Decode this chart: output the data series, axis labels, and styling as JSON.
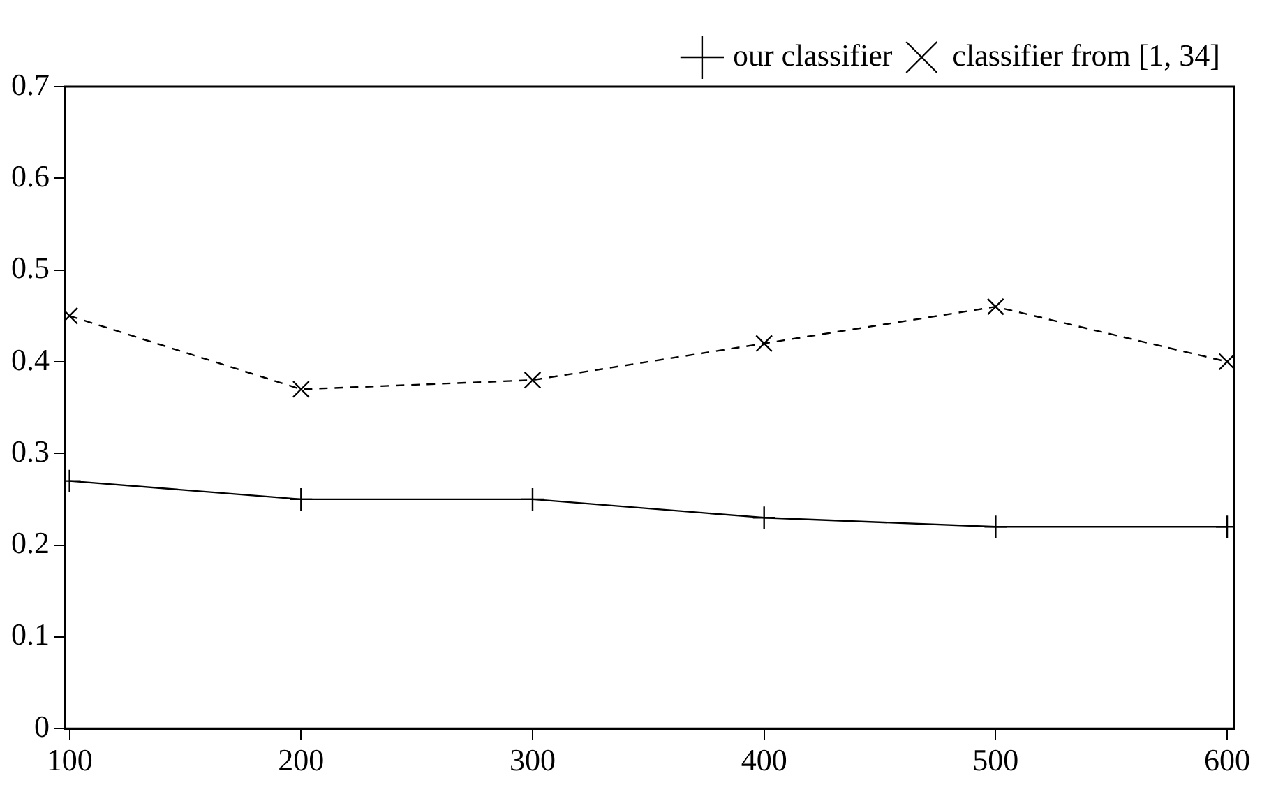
{
  "chart_data": {
    "type": "line",
    "x": [
      100,
      200,
      300,
      400,
      500,
      600
    ],
    "series": [
      {
        "name": "our classifier",
        "color": "#000000",
        "values": [
          0.27,
          0.25,
          0.25,
          0.23,
          0.22,
          0.22
        ],
        "marker": "plus",
        "line_style": "solid"
      },
      {
        "name": "classifier from [1, 34]",
        "color": "#000000",
        "values": [
          0.45,
          0.37,
          0.38,
          0.42,
          0.46,
          0.4
        ],
        "marker": "cross",
        "line_style": "dashed"
      }
    ],
    "xlim": [
      98,
      603
    ],
    "xticks": [
      100,
      200,
      300,
      400,
      500,
      600
    ],
    "ylim": [
      0,
      0.7
    ],
    "yticks": [
      0,
      0.1,
      0.2,
      0.3,
      0.4,
      0.5,
      0.6,
      0.7
    ],
    "grid": false,
    "legend": "top right"
  }
}
